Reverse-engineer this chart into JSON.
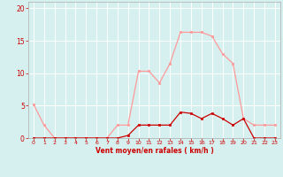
{
  "x": [
    0,
    1,
    2,
    3,
    4,
    5,
    6,
    7,
    8,
    9,
    10,
    11,
    12,
    13,
    14,
    15,
    16,
    17,
    18,
    19,
    20,
    21,
    22,
    23
  ],
  "y_moyen": [
    0,
    0,
    0,
    0,
    0,
    0,
    0,
    0,
    0,
    0.4,
    2,
    2,
    2,
    2,
    4,
    3.8,
    3,
    3.8,
    3,
    2,
    3,
    0,
    0,
    0
  ],
  "y_rafales": [
    5.2,
    2,
    0,
    0,
    0,
    0,
    0,
    0,
    2,
    2,
    10.3,
    10.3,
    8.5,
    11.5,
    16.3,
    16.3,
    16.3,
    15.7,
    13,
    11.5,
    3,
    2,
    2,
    2
  ],
  "xlabel": "Vent moyen/en rafales ( km/h )",
  "ylim": [
    0,
    21
  ],
  "xlim": [
    -0.5,
    23.5
  ],
  "yticks": [
    0,
    5,
    10,
    15,
    20
  ],
  "xticks": [
    0,
    1,
    2,
    3,
    4,
    5,
    6,
    7,
    8,
    9,
    10,
    11,
    12,
    13,
    14,
    15,
    16,
    17,
    18,
    19,
    20,
    21,
    22,
    23
  ],
  "color_moyen": "#cc0000",
  "color_rafales": "#ff9999",
  "bg_color": "#d6f0f0",
  "grid_color": "#ffffff",
  "marker": "s",
  "marker_size": 2.0,
  "line_width": 0.9
}
